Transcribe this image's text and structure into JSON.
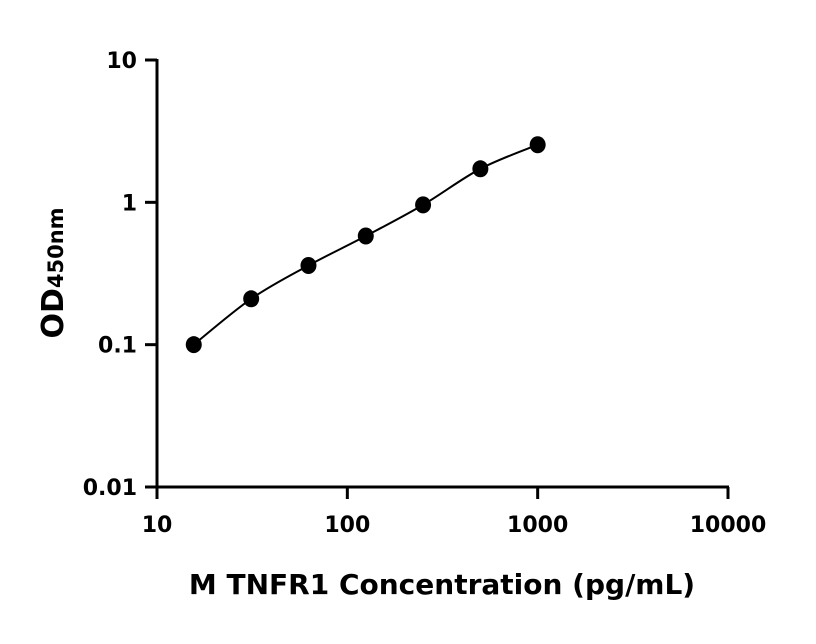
{
  "chart_data": {
    "type": "scatter",
    "xlabel": "M TNFR1 Concentration (pg/mL)",
    "ylabel_main": "OD",
    "ylabel_sub": "450nm",
    "x_scale": "log",
    "y_scale": "log",
    "xlim": [
      10,
      10000
    ],
    "ylim": [
      0.01,
      10
    ],
    "x_ticks": [
      "10",
      "100",
      "1000",
      "10000"
    ],
    "y_ticks": [
      "0.01",
      "0.1",
      "1",
      "10"
    ],
    "grid": false,
    "fit_curve": true,
    "x": [
      15.6,
      31.25,
      62.5,
      125,
      250,
      500,
      1000
    ],
    "y": [
      0.1,
      0.21,
      0.36,
      0.58,
      0.96,
      1.72,
      2.54
    ],
    "marker_color": "#000000"
  }
}
